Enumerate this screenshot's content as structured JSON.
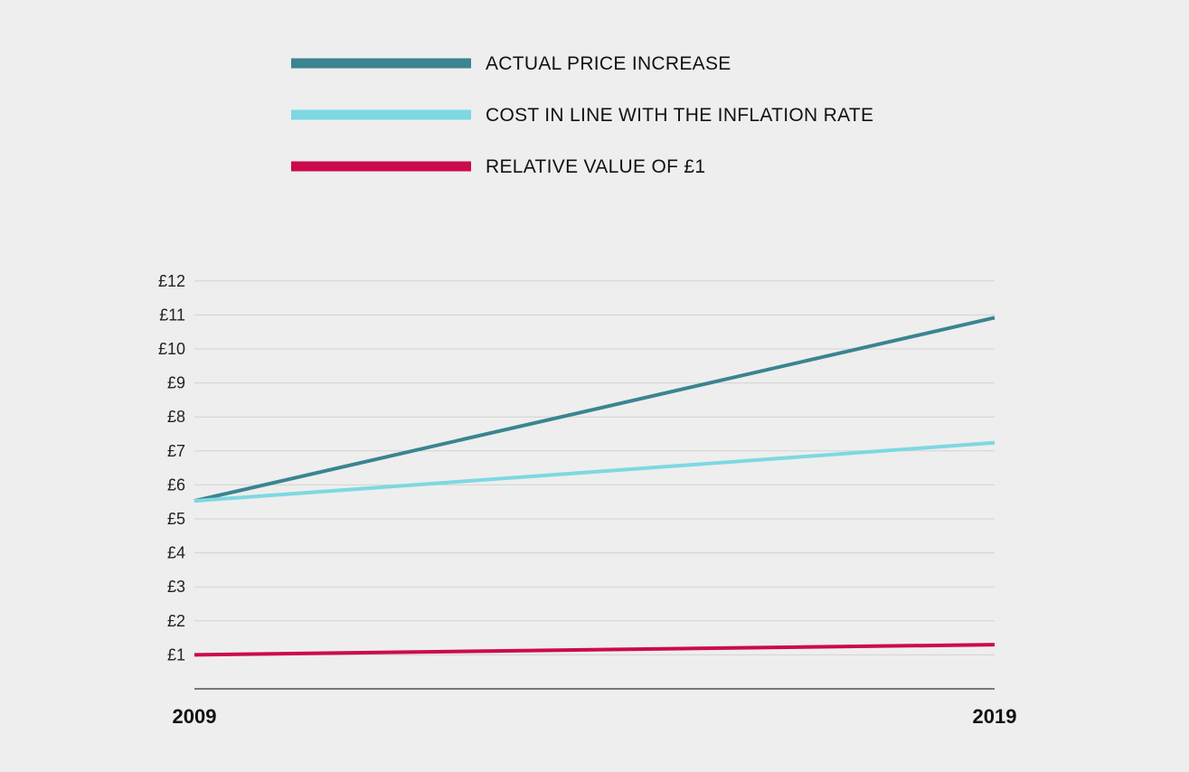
{
  "chart_data": {
    "type": "line",
    "title": "",
    "xlabel": "",
    "ylabel": "",
    "x": [
      "2009",
      "2019"
    ],
    "x_tick_labels": [
      "2009",
      "2019"
    ],
    "y_tick_labels": [
      "£1",
      "£2",
      "£3",
      "£4",
      "£5",
      "£6",
      "£7",
      "£8",
      "£9",
      "£10",
      "£11",
      "£12"
    ],
    "y_ticks": [
      1,
      2,
      3,
      4,
      5,
      6,
      7,
      8,
      9,
      10,
      11,
      12
    ],
    "ylim": [
      0,
      12
    ],
    "grid": true,
    "legend_position": "top",
    "series": [
      {
        "name": "ACTUAL PRICE INCREASE",
        "color": "#3a8590",
        "values": [
          5.53,
          10.92
        ]
      },
      {
        "name": "COST IN LINE WITH THE INFLATION RATE",
        "color": "#7ed8e1",
        "values": [
          5.53,
          7.24
        ]
      },
      {
        "name": "RELATIVE VALUE OF £1",
        "color": "#cc0a4e",
        "values": [
          1.0,
          1.3
        ]
      }
    ]
  }
}
